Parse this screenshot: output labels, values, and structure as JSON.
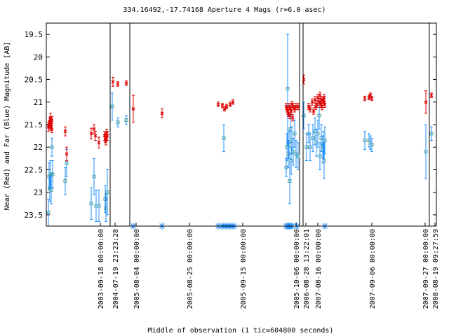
{
  "chart_data": {
    "type": "scatter",
    "title": "334.16492,-17.74168   Aperture 4 Mags (r=6.0 asec)",
    "xlabel": "Middle of observation (1 tic=604800 seconds)",
    "ylabel": "Near (Red) and Far (Blue) Magnitude [AB]",
    "ylim": [
      19.25,
      23.75
    ],
    "y_inverted": true,
    "grid": false,
    "legend": "none",
    "yticks": [
      "19.5",
      "20",
      "20.5",
      "21",
      "21.5",
      "22",
      "22.5",
      "23",
      "23.5"
    ],
    "xticks": [
      {
        "label": "2003-09-18 00:00:00",
        "x": 143
      },
      {
        "label": "2004-07-19 23:23:28",
        "x": 164
      },
      {
        "label": "2005-08-04 00:00:00",
        "x": 194
      },
      {
        "label": "2005-08-25 00:00:00",
        "x": 270
      },
      {
        "label": "2005-09-15 00:00:00",
        "x": 346
      },
      {
        "label": "2005-10-06 00:00:00",
        "x": 422
      },
      {
        "label": "2006-08-28 13:22:01",
        "x": 436
      },
      {
        "label": "2007-08-16 00:00:00",
        "x": 453
      },
      {
        "label": "2007-09-06 00:00:00",
        "x": 530
      },
      {
        "label": "2007-09-27 00:00:00",
        "x": 606
      },
      {
        "label": "2008-08-19 09:27:59",
        "x": 620
      }
    ],
    "xrange": [
      66,
      622
    ],
    "segment_breaks": [
      157,
      185,
      427,
      432,
      612
    ],
    "colors": {
      "near": "#dd0000",
      "far": "#1e90ff",
      "far_fill": "#4aa0a0",
      "nondetect": "#1e90ff"
    },
    "series": [
      {
        "name": "Near",
        "marker": "x",
        "points": [
          {
            "x": 69,
            "y": 21.55,
            "e": 0.1
          },
          {
            "x": 70,
            "y": 21.5,
            "e": 0.1
          },
          {
            "x": 71,
            "y": 21.45,
            "e": 0.1
          },
          {
            "x": 72,
            "y": 21.35,
            "e": 0.1
          },
          {
            "x": 72.5,
            "y": 21.55,
            "e": 0.08
          },
          {
            "x": 73,
            "y": 21.5,
            "e": 0.08
          },
          {
            "x": 74,
            "y": 21.6,
            "e": 0.08
          },
          {
            "x": 74,
            "y": 21.4,
            "e": 0.08
          },
          {
            "x": 93,
            "y": 21.65,
            "e": 0.1
          },
          {
            "x": 95,
            "y": 22.15,
            "e": 0.15
          },
          {
            "x": 130,
            "y": 21.7,
            "e": 0.12
          },
          {
            "x": 134,
            "y": 21.6,
            "e": 0.1
          },
          {
            "x": 136,
            "y": 21.75,
            "e": 0.1
          },
          {
            "x": 141,
            "y": 21.9,
            "e": 0.12
          },
          {
            "x": 149,
            "y": 21.75,
            "e": 0.1
          },
          {
            "x": 150,
            "y": 21.8,
            "e": 0.1
          },
          {
            "x": 151,
            "y": 21.85,
            "e": 0.1
          },
          {
            "x": 152,
            "y": 21.7,
            "e": 0.1
          },
          {
            "x": 153,
            "y": 21.75,
            "e": 0.1
          },
          {
            "x": 161,
            "y": 20.55,
            "e": 0.1
          },
          {
            "x": 168,
            "y": 20.6,
            "e": 0.05
          },
          {
            "x": 180,
            "y": 20.58,
            "e": 0.05
          },
          {
            "x": 190,
            "y": 21.15,
            "e": 0.3
          },
          {
            "x": 231,
            "y": 21.25,
            "e": 0.1
          },
          {
            "x": 311,
            "y": 21.05,
            "e": 0.05
          },
          {
            "x": 317,
            "y": 21.08,
            "e": 0.05
          },
          {
            "x": 320,
            "y": 21.15,
            "e": 0.05
          },
          {
            "x": 323,
            "y": 21.1,
            "e": 0.05
          },
          {
            "x": 328,
            "y": 21.05,
            "e": 0.05
          },
          {
            "x": 332,
            "y": 21.0,
            "e": 0.05
          },
          {
            "x": 408,
            "y": 21.1,
            "e": 0.07
          },
          {
            "x": 409,
            "y": 21.15,
            "e": 0.07
          },
          {
            "x": 410,
            "y": 21.2,
            "e": 0.07
          },
          {
            "x": 411,
            "y": 21.25,
            "e": 0.07
          },
          {
            "x": 412,
            "y": 21.1,
            "e": 0.07
          },
          {
            "x": 413,
            "y": 21.3,
            "e": 0.07
          },
          {
            "x": 414,
            "y": 21.15,
            "e": 0.07
          },
          {
            "x": 415,
            "y": 21.2,
            "e": 0.07
          },
          {
            "x": 416,
            "y": 21.05,
            "e": 0.07
          },
          {
            "x": 417,
            "y": 21.35,
            "e": 0.07
          },
          {
            "x": 418,
            "y": 21.1,
            "e": 0.07
          },
          {
            "x": 420,
            "y": 21.15,
            "e": 0.07
          },
          {
            "x": 422,
            "y": 21.1,
            "e": 0.07
          },
          {
            "x": 425,
            "y": 21.1,
            "e": 0.07
          },
          {
            "x": 433,
            "y": 20.5,
            "e": 0.1
          },
          {
            "x": 440,
            "y": 21.1,
            "e": 0.07
          },
          {
            "x": 442,
            "y": 21.15,
            "e": 0.07
          },
          {
            "x": 445,
            "y": 21.0,
            "e": 0.07
          },
          {
            "x": 447,
            "y": 21.2,
            "e": 0.07
          },
          {
            "x": 449,
            "y": 20.95,
            "e": 0.07
          },
          {
            "x": 450,
            "y": 21.1,
            "e": 0.07
          },
          {
            "x": 452,
            "y": 21.05,
            "e": 0.07
          },
          {
            "x": 453,
            "y": 20.9,
            "e": 0.07
          },
          {
            "x": 455,
            "y": 21.0,
            "e": 0.07
          },
          {
            "x": 456,
            "y": 20.85,
            "e": 0.07
          },
          {
            "x": 457,
            "y": 21.05,
            "e": 0.07
          },
          {
            "x": 458,
            "y": 20.95,
            "e": 0.07
          },
          {
            "x": 459,
            "y": 21.1,
            "e": 0.07
          },
          {
            "x": 460,
            "y": 20.95,
            "e": 0.07
          },
          {
            "x": 461,
            "y": 21.0,
            "e": 0.07
          },
          {
            "x": 462,
            "y": 20.9,
            "e": 0.07
          },
          {
            "x": 463,
            "y": 21.05,
            "e": 0.07
          },
          {
            "x": 520,
            "y": 20.92,
            "e": 0.05
          },
          {
            "x": 526,
            "y": 20.9,
            "e": 0.05
          },
          {
            "x": 528,
            "y": 20.85,
            "e": 0.05
          },
          {
            "x": 530,
            "y": 20.92,
            "e": 0.05
          },
          {
            "x": 607,
            "y": 21.0,
            "e": 0.25
          },
          {
            "x": 615,
            "y": 20.85,
            "e": 0.05
          }
        ]
      },
      {
        "name": "Far",
        "marker": "square",
        "points": [
          {
            "x": 69,
            "y": 23.45,
            "e": 0.3
          },
          {
            "x": 70,
            "y": 22.65,
            "e": 0.3
          },
          {
            "x": 71,
            "y": 22.9,
            "e": 0.3
          },
          {
            "x": 72,
            "y": 22.6,
            "e": 0.3
          },
          {
            "x": 73,
            "y": 22.95,
            "e": 0.3
          },
          {
            "x": 74,
            "y": 22.0,
            "e": 0.2
          },
          {
            "x": 75,
            "y": 22.6,
            "e": 0.3
          },
          {
            "x": 93,
            "y": 22.75,
            "e": 0.3
          },
          {
            "x": 95,
            "y": 22.35,
            "e": 0.3
          },
          {
            "x": 130,
            "y": 23.25,
            "e": 0.35
          },
          {
            "x": 134,
            "y": 22.65,
            "e": 0.4
          },
          {
            "x": 137,
            "y": 23.3,
            "e": 0.35
          },
          {
            "x": 141,
            "y": 23.3,
            "e": 0.35
          },
          {
            "x": 150,
            "y": 23.15,
            "e": 0.3
          },
          {
            "x": 151,
            "y": 23.35,
            "e": 0.3
          },
          {
            "x": 153,
            "y": 23.0,
            "e": 0.5
          },
          {
            "x": 160,
            "y": 21.1,
            "e": 0.3
          },
          {
            "x": 168,
            "y": 21.45,
            "e": 0.1
          },
          {
            "x": 180,
            "y": 21.4,
            "e": 0.1
          },
          {
            "x": 319,
            "y": 21.8,
            "e": 0.3
          },
          {
            "x": 408,
            "y": 22.45,
            "e": 0.2
          },
          {
            "x": 409,
            "y": 22.0,
            "e": 0.3
          },
          {
            "x": 410,
            "y": 20.7,
            "e": 1.2
          },
          {
            "x": 411,
            "y": 22.15,
            "e": 0.3
          },
          {
            "x": 412,
            "y": 21.95,
            "e": 0.3
          },
          {
            "x": 413,
            "y": 22.75,
            "e": 0.5
          },
          {
            "x": 414,
            "y": 21.6,
            "e": 0.3
          },
          {
            "x": 415,
            "y": 22.3,
            "e": 0.3
          },
          {
            "x": 416,
            "y": 21.85,
            "e": 0.3
          },
          {
            "x": 418,
            "y": 22.1,
            "e": 0.3
          },
          {
            "x": 420,
            "y": 21.7,
            "e": 0.3
          },
          {
            "x": 422,
            "y": 22.15,
            "e": 0.3
          },
          {
            "x": 425,
            "y": 22.2,
            "e": 0.3
          },
          {
            "x": 433,
            "y": 21.3,
            "e": 0.3
          },
          {
            "x": 437,
            "y": 22.0,
            "e": 0.3
          },
          {
            "x": 440,
            "y": 21.7,
            "e": 0.2
          },
          {
            "x": 442,
            "y": 22.0,
            "e": 0.3
          },
          {
            "x": 446,
            "y": 21.8,
            "e": 0.3
          },
          {
            "x": 449,
            "y": 21.65,
            "e": 0.3
          },
          {
            "x": 451,
            "y": 21.9,
            "e": 0.3
          },
          {
            "x": 453,
            "y": 21.7,
            "e": 0.3
          },
          {
            "x": 455,
            "y": 21.3,
            "e": 0.3
          },
          {
            "x": 456,
            "y": 22.2,
            "e": 0.3
          },
          {
            "x": 458,
            "y": 21.8,
            "e": 0.3
          },
          {
            "x": 460,
            "y": 22.05,
            "e": 0.3
          },
          {
            "x": 461,
            "y": 21.95,
            "e": 0.3
          },
          {
            "x": 462,
            "y": 22.3,
            "e": 0.4
          },
          {
            "x": 463,
            "y": 21.85,
            "e": 0.3
          },
          {
            "x": 520,
            "y": 21.85,
            "e": 0.2
          },
          {
            "x": 526,
            "y": 21.85,
            "e": 0.15
          },
          {
            "x": 528,
            "y": 21.9,
            "e": 0.15
          },
          {
            "x": 530,
            "y": 21.95,
            "e": 0.15
          },
          {
            "x": 607,
            "y": 22.1,
            "e": 0.6
          },
          {
            "x": 615,
            "y": 21.7,
            "e": 0.15
          }
        ]
      },
      {
        "name": "Non-detection",
        "marker": "asterisk",
        "y": 23.75,
        "x": [
          190,
          231,
          311,
          316,
          319,
          322,
          325,
          328,
          331,
          334,
          408,
          410,
          412,
          414,
          416,
          423,
          463
        ]
      }
    ]
  }
}
